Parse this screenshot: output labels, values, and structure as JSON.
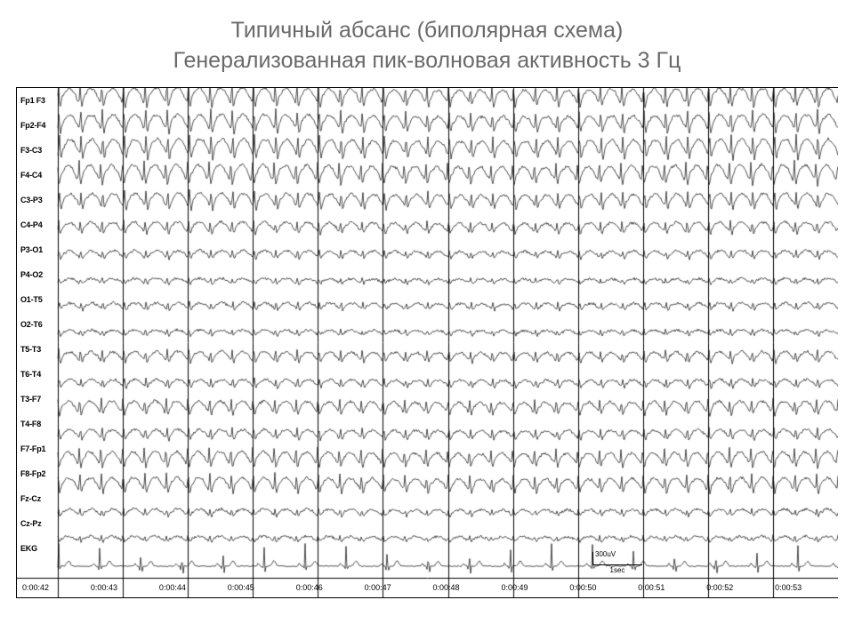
{
  "title_line1": "Типичный абсанс (биполярная схема)",
  "title_line2": "Генерализованная пик-волновая активность 3 Гц",
  "title_color": "#6a6a6a",
  "title_fontsize": 25,
  "background_color": "#ffffff",
  "trace_color": "#000000",
  "grid_color": "#000000",
  "border_color": "#000000",
  "label_fontsize": 9,
  "time_fontsize": 9,
  "seconds": 12,
  "spike_wave_hz": 3,
  "channels": [
    {
      "label": "Fp1 F3",
      "amp": 1.0,
      "spike": 1.0
    },
    {
      "label": "Fp2-F4",
      "amp": 0.95,
      "spike": 0.98
    },
    {
      "label": "F3-C3",
      "amp": 1.05,
      "spike": 1.05
    },
    {
      "label": "F4-C4",
      "amp": 1.05,
      "spike": 1.0
    },
    {
      "label": "C3-P3",
      "amp": 0.85,
      "spike": 0.8
    },
    {
      "label": "C4-P4",
      "amp": 0.65,
      "spike": 0.55
    },
    {
      "label": "P3-O1",
      "amp": 0.45,
      "spike": 0.35
    },
    {
      "label": "P4-O2",
      "amp": 0.3,
      "spike": 0.25
    },
    {
      "label": "O1-T5",
      "amp": 0.4,
      "spike": 0.35
    },
    {
      "label": "O2-T6",
      "amp": 0.3,
      "spike": 0.25
    },
    {
      "label": "T5-T3",
      "amp": 0.6,
      "spike": 0.55
    },
    {
      "label": "T6-T4",
      "amp": 0.45,
      "spike": 0.4
    },
    {
      "label": "T3-F7",
      "amp": 0.75,
      "spike": 0.7
    },
    {
      "label": "T4-F8",
      "amp": 0.55,
      "spike": 0.5
    },
    {
      "label": "F7-Fp1",
      "amp": 0.8,
      "spike": 0.85
    },
    {
      "label": "F8-Fp2",
      "amp": 0.8,
      "spike": 0.85
    },
    {
      "label": "Fz-Cz",
      "amp": 0.4,
      "spike": 0.3
    },
    {
      "label": "Cz-Pz",
      "amp": 0.3,
      "spike": 0.25
    },
    {
      "label": "EKG",
      "amp": 0.0,
      "spike": 0.0,
      "is_ekg": true
    }
  ],
  "time_labels": [
    "0:00:42",
    "0:00:43",
    "0:00:44",
    "0:00:45",
    "0:00:46",
    "0:00:47",
    "0:00:48",
    "0:00:49",
    "0:00:50",
    "0:00:51",
    "0:00:52",
    "0:00:53"
  ],
  "scale_voltage_label": "300uV",
  "scale_time_label": "1sec",
  "ekg_bpm_approx": 95,
  "line_width": 0.7
}
